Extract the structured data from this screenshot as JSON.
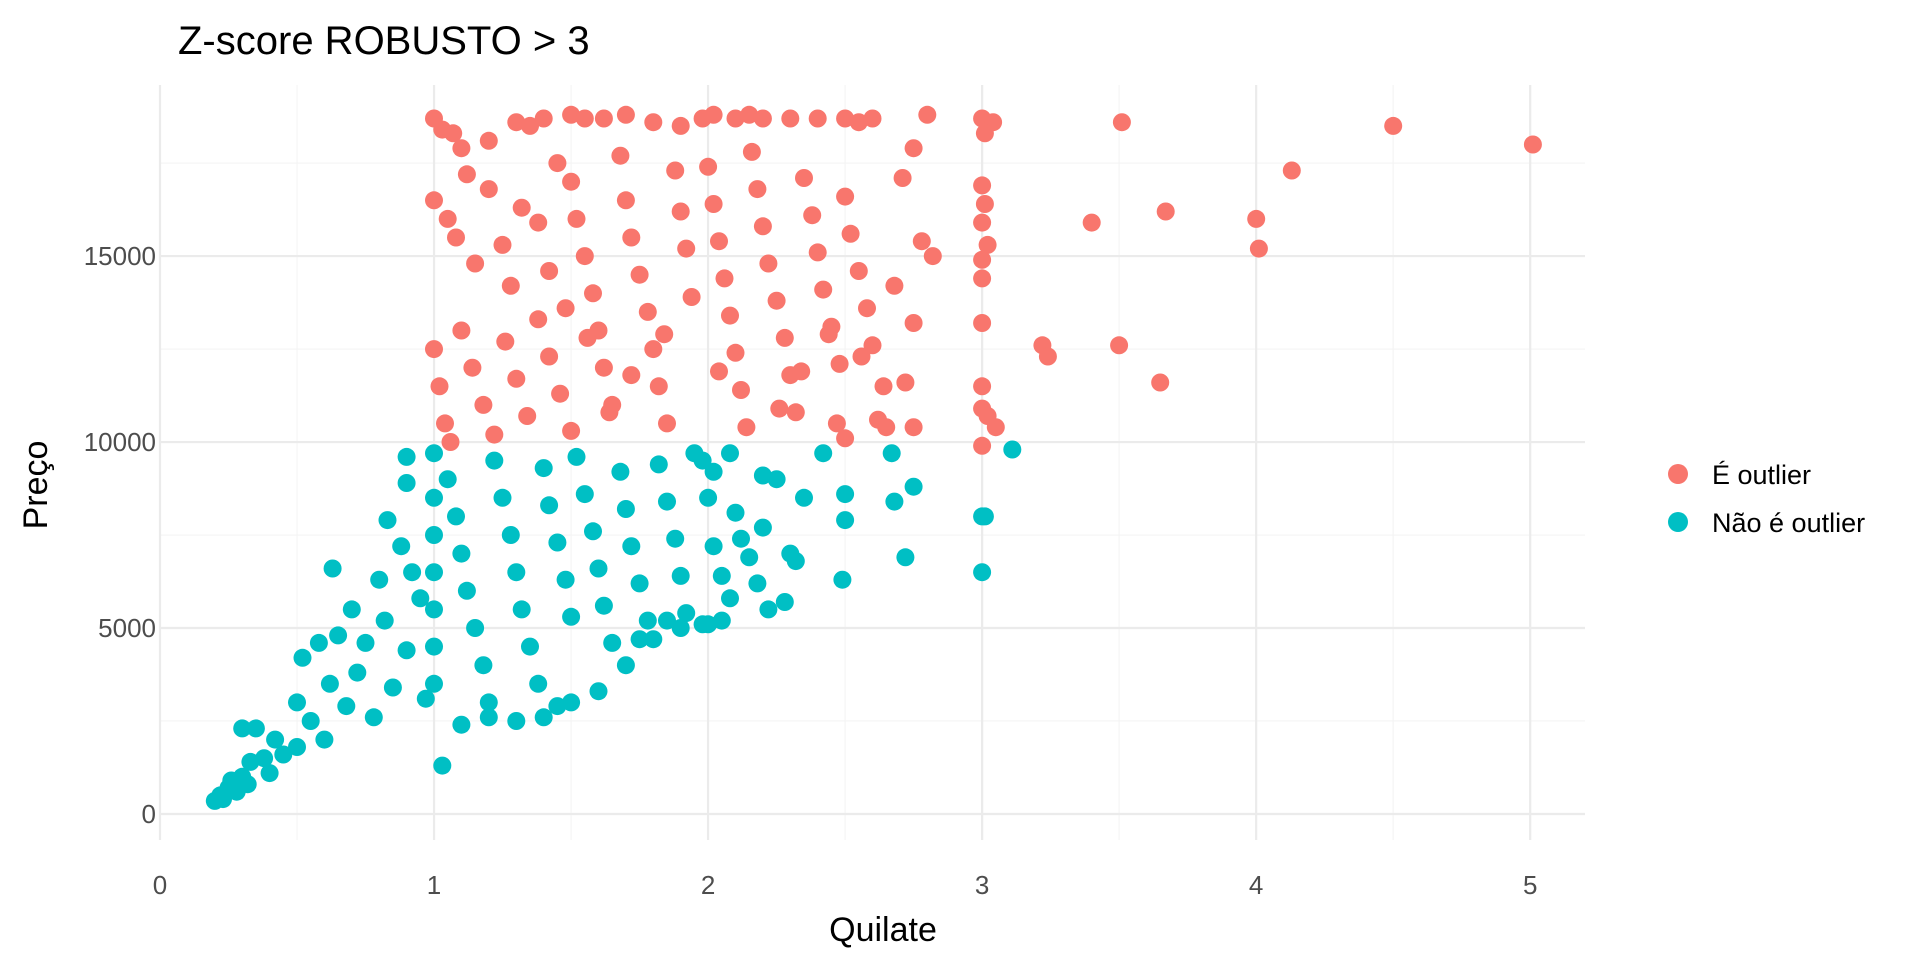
{
  "chart_data": {
    "type": "scatter",
    "title": "Z-score ROBUSTO > 3",
    "xlabel": "Quilate",
    "ylabel": "Preço",
    "xlim": [
      0,
      5.2
    ],
    "ylim": [
      -700,
      19600
    ],
    "x_ticks": [
      0,
      1,
      2,
      3,
      4,
      5
    ],
    "y_ticks": [
      0,
      5000,
      10000,
      15000
    ],
    "x_tick_labels": [
      "0",
      "1",
      "2",
      "3",
      "4",
      "5"
    ],
    "y_tick_labels": [
      "0",
      "5000",
      "10000",
      "15000"
    ],
    "grid": true,
    "legend_position": "right",
    "series": [
      {
        "name": "É outlier",
        "color": "#F8766D",
        "points": [
          [
            1.0,
            18700
          ],
          [
            1.03,
            18400
          ],
          [
            1.07,
            18300
          ],
          [
            1.1,
            17900
          ],
          [
            1.2,
            18100
          ],
          [
            1.3,
            18600
          ],
          [
            1.35,
            18500
          ],
          [
            1.4,
            18700
          ],
          [
            1.5,
            18800
          ],
          [
            1.55,
            18700
          ],
          [
            1.62,
            18700
          ],
          [
            1.7,
            18800
          ],
          [
            1.8,
            18600
          ],
          [
            1.9,
            18500
          ],
          [
            1.98,
            18700
          ],
          [
            2.02,
            18800
          ],
          [
            2.1,
            18700
          ],
          [
            2.15,
            18800
          ],
          [
            2.2,
            18700
          ],
          [
            2.3,
            18700
          ],
          [
            2.4,
            18700
          ],
          [
            2.5,
            18700
          ],
          [
            2.55,
            18600
          ],
          [
            2.6,
            18700
          ],
          [
            2.8,
            18800
          ],
          [
            3.0,
            18700
          ],
          [
            3.04,
            18600
          ],
          [
            3.01,
            18300
          ],
          [
            2.75,
            17900
          ],
          [
            1.0,
            16500
          ],
          [
            1.05,
            16000
          ],
          [
            1.08,
            15500
          ],
          [
            1.12,
            17200
          ],
          [
            1.15,
            14800
          ],
          [
            1.2,
            16800
          ],
          [
            1.25,
            15300
          ],
          [
            1.28,
            14200
          ],
          [
            1.32,
            16300
          ],
          [
            1.38,
            15900
          ],
          [
            1.42,
            14600
          ],
          [
            1.45,
            17500
          ],
          [
            1.48,
            13600
          ],
          [
            1.5,
            17000
          ],
          [
            1.52,
            16000
          ],
          [
            1.55,
            15000
          ],
          [
            1.58,
            14000
          ],
          [
            1.6,
            13000
          ],
          [
            1.62,
            12000
          ],
          [
            1.65,
            11000
          ],
          [
            1.68,
            17700
          ],
          [
            1.7,
            16500
          ],
          [
            1.72,
            15500
          ],
          [
            1.75,
            14500
          ],
          [
            1.78,
            13500
          ],
          [
            1.8,
            12500
          ],
          [
            1.82,
            11500
          ],
          [
            1.85,
            10500
          ],
          [
            1.88,
            17300
          ],
          [
            1.9,
            16200
          ],
          [
            1.92,
            15200
          ],
          [
            2.0,
            17400
          ],
          [
            2.02,
            16400
          ],
          [
            2.04,
            15400
          ],
          [
            2.06,
            14400
          ],
          [
            2.08,
            13400
          ],
          [
            2.1,
            12400
          ],
          [
            2.12,
            11400
          ],
          [
            2.14,
            10400
          ],
          [
            2.16,
            17800
          ],
          [
            2.18,
            16800
          ],
          [
            2.2,
            15800
          ],
          [
            2.22,
            14800
          ],
          [
            2.25,
            13800
          ],
          [
            2.28,
            12800
          ],
          [
            2.3,
            11800
          ],
          [
            2.32,
            10800
          ],
          [
            2.35,
            17100
          ],
          [
            2.38,
            16100
          ],
          [
            2.4,
            15100
          ],
          [
            2.42,
            14100
          ],
          [
            2.45,
            13100
          ],
          [
            2.48,
            12100
          ],
          [
            2.5,
            16600
          ],
          [
            2.52,
            15600
          ],
          [
            2.55,
            14600
          ],
          [
            2.58,
            13600
          ],
          [
            2.6,
            12600
          ],
          [
            2.62,
            10600
          ],
          [
            2.65,
            10400
          ],
          [
            2.68,
            14200
          ],
          [
            2.72,
            11600
          ],
          [
            2.75,
            13200
          ],
          [
            2.78,
            15400
          ],
          [
            2.82,
            15000
          ],
          [
            2.71,
            17100
          ],
          [
            2.5,
            10100
          ],
          [
            2.47,
            10500
          ],
          [
            2.75,
            10400
          ],
          [
            3.0,
            16900
          ],
          [
            3.01,
            16400
          ],
          [
            3.0,
            15900
          ],
          [
            3.02,
            15300
          ],
          [
            3.0,
            14900
          ],
          [
            3.0,
            14400
          ],
          [
            3.0,
            13200
          ],
          [
            3.0,
            11500
          ],
          [
            3.0,
            10900
          ],
          [
            3.02,
            10700
          ],
          [
            3.05,
            10400
          ],
          [
            3.0,
            9900
          ],
          [
            3.22,
            12600
          ],
          [
            3.24,
            12300
          ],
          [
            3.4,
            15900
          ],
          [
            3.5,
            12600
          ],
          [
            3.51,
            18600
          ],
          [
            3.65,
            11600
          ],
          [
            3.67,
            16200
          ],
          [
            4.0,
            16000
          ],
          [
            4.01,
            15200
          ],
          [
            4.13,
            17300
          ],
          [
            4.5,
            18500
          ],
          [
            5.01,
            18000
          ],
          [
            1.0,
            12500
          ],
          [
            1.02,
            11500
          ],
          [
            1.04,
            10500
          ],
          [
            1.06,
            10000
          ],
          [
            1.1,
            13000
          ],
          [
            1.14,
            12000
          ],
          [
            1.18,
            11000
          ],
          [
            1.22,
            10200
          ],
          [
            1.26,
            12700
          ],
          [
            1.3,
            11700
          ],
          [
            1.34,
            10700
          ],
          [
            1.38,
            13300
          ],
          [
            1.42,
            12300
          ],
          [
            1.46,
            11300
          ],
          [
            1.5,
            10300
          ],
          [
            1.56,
            12800
          ],
          [
            1.64,
            10800
          ],
          [
            1.72,
            11800
          ],
          [
            1.84,
            12900
          ],
          [
            1.94,
            13900
          ],
          [
            2.04,
            11900
          ],
          [
            2.26,
            10900
          ],
          [
            2.34,
            11900
          ],
          [
            2.44,
            12900
          ],
          [
            2.56,
            12300
          ],
          [
            2.64,
            11500
          ]
        ]
      },
      {
        "name": "Não é outlier",
        "color": "#00BFC4",
        "points": [
          [
            0.2,
            350
          ],
          [
            0.22,
            500
          ],
          [
            0.23,
            400
          ],
          [
            0.25,
            700
          ],
          [
            0.26,
            900
          ],
          [
            0.28,
            600
          ],
          [
            0.3,
            1000
          ],
          [
            0.3,
            2300
          ],
          [
            0.32,
            800
          ],
          [
            0.33,
            1400
          ],
          [
            0.35,
            2300
          ],
          [
            0.38,
            1500
          ],
          [
            0.4,
            1100
          ],
          [
            0.42,
            2000
          ],
          [
            0.45,
            1600
          ],
          [
            0.5,
            1800
          ],
          [
            0.5,
            3000
          ],
          [
            0.52,
            4200
          ],
          [
            0.55,
            2500
          ],
          [
            0.58,
            4600
          ],
          [
            0.6,
            2000
          ],
          [
            0.62,
            3500
          ],
          [
            0.63,
            6600
          ],
          [
            0.65,
            4800
          ],
          [
            0.68,
            2900
          ],
          [
            0.7,
            5500
          ],
          [
            0.72,
            3800
          ],
          [
            0.75,
            4600
          ],
          [
            0.78,
            2600
          ],
          [
            0.8,
            6300
          ],
          [
            0.82,
            5200
          ],
          [
            0.83,
            7900
          ],
          [
            0.85,
            3400
          ],
          [
            0.88,
            7200
          ],
          [
            0.9,
            9600
          ],
          [
            0.9,
            8900
          ],
          [
            0.9,
            4400
          ],
          [
            0.92,
            6500
          ],
          [
            0.95,
            5800
          ],
          [
            0.97,
            3100
          ],
          [
            1.0,
            9700
          ],
          [
            1.0,
            8500
          ],
          [
            1.0,
            7500
          ],
          [
            1.0,
            6500
          ],
          [
            1.0,
            5500
          ],
          [
            1.0,
            4500
          ],
          [
            1.0,
            3500
          ],
          [
            1.03,
            1300
          ],
          [
            1.05,
            9000
          ],
          [
            1.08,
            8000
          ],
          [
            1.1,
            7000
          ],
          [
            1.12,
            6000
          ],
          [
            1.15,
            5000
          ],
          [
            1.18,
            4000
          ],
          [
            1.2,
            3000
          ],
          [
            1.22,
            9500
          ],
          [
            1.25,
            8500
          ],
          [
            1.28,
            7500
          ],
          [
            1.3,
            6500
          ],
          [
            1.32,
            5500
          ],
          [
            1.35,
            4500
          ],
          [
            1.38,
            3500
          ],
          [
            1.4,
            9300
          ],
          [
            1.42,
            8300
          ],
          [
            1.45,
            7300
          ],
          [
            1.48,
            6300
          ],
          [
            1.5,
            5300
          ],
          [
            1.5,
            3000
          ],
          [
            1.52,
            9600
          ],
          [
            1.55,
            8600
          ],
          [
            1.58,
            7600
          ],
          [
            1.6,
            6600
          ],
          [
            1.62,
            5600
          ],
          [
            1.65,
            4600
          ],
          [
            1.68,
            9200
          ],
          [
            1.7,
            8200
          ],
          [
            1.72,
            7200
          ],
          [
            1.75,
            6200
          ],
          [
            1.78,
            5200
          ],
          [
            1.8,
            4700
          ],
          [
            1.82,
            9400
          ],
          [
            1.85,
            8400
          ],
          [
            1.88,
            7400
          ],
          [
            1.9,
            6400
          ],
          [
            1.92,
            5400
          ],
          [
            1.95,
            9700
          ],
          [
            1.1,
            2400
          ],
          [
            1.2,
            2600
          ],
          [
            1.3,
            2500
          ],
          [
            1.4,
            2600
          ],
          [
            1.45,
            2900
          ],
          [
            1.6,
            3300
          ],
          [
            1.7,
            4000
          ],
          [
            1.75,
            4700
          ],
          [
            1.85,
            5200
          ],
          [
            1.9,
            5000
          ],
          [
            1.98,
            5100
          ],
          [
            2.0,
            5100
          ],
          [
            2.05,
            5200
          ],
          [
            2.0,
            8500
          ],
          [
            2.02,
            7200
          ],
          [
            2.05,
            6400
          ],
          [
            2.08,
            5800
          ],
          [
            2.1,
            8100
          ],
          [
            2.15,
            6900
          ],
          [
            2.2,
            7700
          ],
          [
            2.22,
            5500
          ],
          [
            2.25,
            9000
          ],
          [
            2.3,
            7000
          ],
          [
            2.32,
            6800
          ],
          [
            2.35,
            8500
          ],
          [
            2.28,
            5700
          ],
          [
            2.18,
            6200
          ],
          [
            2.12,
            7400
          ],
          [
            2.02,
            9200
          ],
          [
            2.08,
            9700
          ],
          [
            1.98,
            9500
          ],
          [
            2.2,
            9100
          ],
          [
            2.42,
            9700
          ],
          [
            2.5,
            8600
          ],
          [
            2.5,
            7900
          ],
          [
            2.49,
            6300
          ],
          [
            2.67,
            9700
          ],
          [
            2.68,
            8400
          ],
          [
            2.72,
            6900
          ],
          [
            2.75,
            8800
          ],
          [
            3.0,
            8000
          ],
          [
            3.01,
            8000
          ],
          [
            3.0,
            6500
          ],
          [
            3.11,
            9800
          ]
        ]
      }
    ]
  }
}
